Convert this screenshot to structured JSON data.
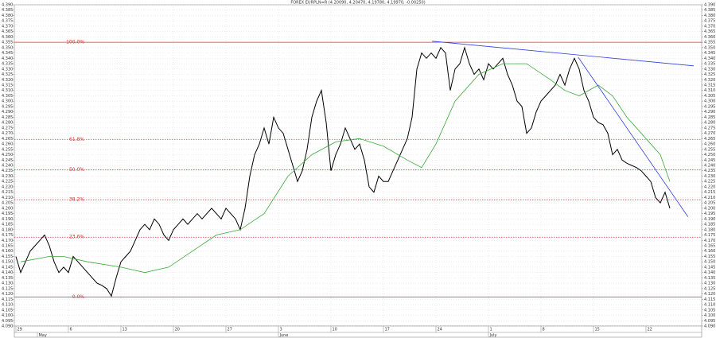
{
  "chart_data": {
    "type": "line",
    "title": "FOREX EURPLN=R (4.20090, 4.20470, 4.19780, 4.19970, -0.00250)",
    "xlim": [
      -0.33,
      143.67
    ],
    "ylim": [
      4.09,
      4.39
    ],
    "grid": true,
    "yticks": [
      {
        "value": 4.09,
        "label": "4.090"
      },
      {
        "value": 4.095,
        "label": "4.095"
      },
      {
        "value": 4.1,
        "label": "4.100"
      },
      {
        "value": 4.105,
        "label": "4.105"
      },
      {
        "value": 4.11,
        "label": "4.110"
      },
      {
        "value": 4.115,
        "label": "4.115"
      },
      {
        "value": 4.12,
        "label": "4.120"
      },
      {
        "value": 4.125,
        "label": "4.125"
      },
      {
        "value": 4.13,
        "label": "4.130"
      },
      {
        "value": 4.135,
        "label": "4.135"
      },
      {
        "value": 4.14,
        "label": "4.140"
      },
      {
        "value": 4.145,
        "label": "4.145"
      },
      {
        "value": 4.15,
        "label": "4.150"
      },
      {
        "value": 4.155,
        "label": "4.155"
      },
      {
        "value": 4.16,
        "label": "4.160"
      },
      {
        "value": 4.165,
        "label": "4.165"
      },
      {
        "value": 4.17,
        "label": "4.170"
      },
      {
        "value": 4.175,
        "label": "4.175"
      },
      {
        "value": 4.18,
        "label": "4.180"
      },
      {
        "value": 4.185,
        "label": "4.185"
      },
      {
        "value": 4.19,
        "label": "4.190"
      },
      {
        "value": 4.195,
        "label": "4.195"
      },
      {
        "value": 4.2,
        "label": "4.200"
      },
      {
        "value": 4.205,
        "label": "4.205"
      },
      {
        "value": 4.21,
        "label": "4.210"
      },
      {
        "value": 4.215,
        "label": "4.215"
      },
      {
        "value": 4.22,
        "label": "4.220"
      },
      {
        "value": 4.225,
        "label": "4.225"
      },
      {
        "value": 4.23,
        "label": "4.230"
      },
      {
        "value": 4.235,
        "label": "4.235"
      },
      {
        "value": 4.24,
        "label": "4.240"
      },
      {
        "value": 4.245,
        "label": "4.245"
      },
      {
        "value": 4.25,
        "label": "4.250"
      },
      {
        "value": 4.255,
        "label": "4.255"
      },
      {
        "value": 4.26,
        "label": "4.260"
      },
      {
        "value": 4.265,
        "label": "4.265"
      },
      {
        "value": 4.27,
        "label": "4.270"
      },
      {
        "value": 4.275,
        "label": "4.275"
      },
      {
        "value": 4.28,
        "label": "4.280"
      },
      {
        "value": 4.285,
        "label": "4.285"
      },
      {
        "value": 4.29,
        "label": "4.290"
      },
      {
        "value": 4.295,
        "label": "4.295"
      },
      {
        "value": 4.3,
        "label": "4.300"
      },
      {
        "value": 4.305,
        "label": "4.305"
      },
      {
        "value": 4.31,
        "label": "4.310"
      },
      {
        "value": 4.315,
        "label": "4.315"
      },
      {
        "value": 4.32,
        "label": "4.320"
      },
      {
        "value": 4.325,
        "label": "4.325"
      },
      {
        "value": 4.33,
        "label": "4.330"
      },
      {
        "value": 4.335,
        "label": "4.335"
      },
      {
        "value": 4.34,
        "label": "4.340"
      },
      {
        "value": 4.345,
        "label": "4.345"
      },
      {
        "value": 4.35,
        "label": "4.350"
      },
      {
        "value": 4.355,
        "label": "4.355"
      },
      {
        "value": 4.36,
        "label": "4.360"
      },
      {
        "value": 4.365,
        "label": "4.365"
      },
      {
        "value": 4.37,
        "label": "4.370"
      },
      {
        "value": 4.375,
        "label": "4.375"
      },
      {
        "value": 4.38,
        "label": "4.380"
      },
      {
        "value": 4.385,
        "label": "4.385"
      },
      {
        "value": 4.39,
        "label": "4.390"
      }
    ],
    "xticks": [
      {
        "value": 0,
        "label": "29"
      },
      {
        "value": 11,
        "label": "6"
      },
      {
        "value": 22,
        "label": "13"
      },
      {
        "value": 33,
        "label": "20"
      },
      {
        "value": 44,
        "label": "27"
      },
      {
        "value": 55,
        "label": "3"
      },
      {
        "value": 66,
        "label": "10"
      },
      {
        "value": 77,
        "label": "17"
      },
      {
        "value": 88,
        "label": "24"
      },
      {
        "value": 99,
        "label": "1"
      },
      {
        "value": 110,
        "label": "8"
      },
      {
        "value": 121,
        "label": "15"
      },
      {
        "value": 132,
        "label": "22"
      }
    ],
    "months": [
      {
        "value": 4.5,
        "label": "May"
      },
      {
        "value": 55,
        "label": "June"
      },
      {
        "value": 99,
        "label": "July"
      }
    ],
    "series": [
      {
        "color": "#000000",
        "values": [
          4.155,
          4.14,
          4.15,
          4.16,
          4.165,
          4.17,
          4.175,
          4.165,
          4.15,
          4.14,
          4.145,
          4.14,
          4.155,
          4.15,
          4.145,
          4.14,
          4.135,
          4.13,
          4.128,
          4.125,
          4.118,
          4.135,
          4.15,
          4.155,
          4.16,
          4.17,
          4.18,
          4.185,
          4.18,
          4.19,
          4.185,
          4.175,
          4.17,
          4.18,
          4.185,
          4.19,
          4.185,
          4.19,
          4.195,
          4.19,
          4.195,
          4.2,
          4.195,
          4.19,
          4.2,
          4.195,
          4.19,
          4.18,
          4.2,
          4.23,
          4.25,
          4.26,
          4.275,
          4.26,
          4.285,
          4.275,
          4.27,
          4.255,
          4.24,
          4.225,
          4.235,
          4.255,
          4.285,
          4.3,
          4.31,
          4.28,
          4.235,
          4.25,
          4.26,
          4.275,
          4.265,
          4.255,
          4.26,
          4.245,
          4.22,
          4.215,
          4.23,
          4.225,
          4.225,
          4.235,
          4.245,
          4.255,
          4.265,
          4.285,
          4.33,
          4.345,
          4.34,
          4.345,
          4.34,
          4.35,
          4.345,
          4.31,
          4.33,
          4.335,
          4.35,
          4.335,
          4.325,
          4.33,
          4.32,
          4.335,
          4.33,
          4.335,
          4.34,
          4.325,
          4.315,
          4.3,
          4.295,
          4.27,
          4.275,
          4.29,
          4.3,
          4.305,
          4.31,
          4.315,
          4.325,
          4.315,
          4.33,
          4.34,
          4.33,
          4.31,
          4.3,
          4.285,
          4.28,
          4.278,
          4.27,
          4.25,
          4.255,
          4.245,
          4.242,
          4.24,
          4.238,
          4.235,
          4.23,
          4.225,
          4.21,
          4.205,
          4.215,
          4.2
        ]
      },
      {
        "color": "#3aa83a",
        "x": [
          1,
          7,
          10,
          15,
          22,
          27,
          32,
          37,
          42,
          47,
          52,
          57,
          62,
          67,
          72,
          77,
          82,
          85,
          88,
          92,
          97,
          102,
          107,
          112,
          115,
          118,
          122,
          125,
          128,
          132,
          135,
          137
        ],
        "values": [
          4.15,
          4.155,
          4.155,
          4.15,
          4.145,
          4.14,
          4.145,
          4.16,
          4.175,
          4.18,
          4.195,
          4.23,
          4.25,
          4.262,
          4.265,
          4.258,
          4.245,
          4.238,
          4.26,
          4.3,
          4.325,
          4.335,
          4.335,
          4.32,
          4.31,
          4.305,
          4.315,
          4.305,
          4.285,
          4.265,
          4.25,
          4.225
        ]
      },
      {
        "color": "#3040e0",
        "x": [
          87.2,
          142
        ],
        "values": [
          4.356,
          4.333
        ]
      },
      {
        "color": "#3040e0",
        "x": [
          117.8,
          140.8
        ],
        "values": [
          4.341,
          4.192
        ]
      }
    ],
    "fib_color": "#e03030",
    "fib_levels": [
      {
        "label": "100.0%",
        "value": 4.355
      },
      {
        "label": "61.8%",
        "value": 4.264
      },
      {
        "label": "50.0%",
        "value": 4.236
      },
      {
        "label": "38.2%",
        "value": 4.208
      },
      {
        "label": "23.6%",
        "value": 4.173
      },
      {
        "label": "0.0%",
        "value": 4.117
      }
    ]
  }
}
